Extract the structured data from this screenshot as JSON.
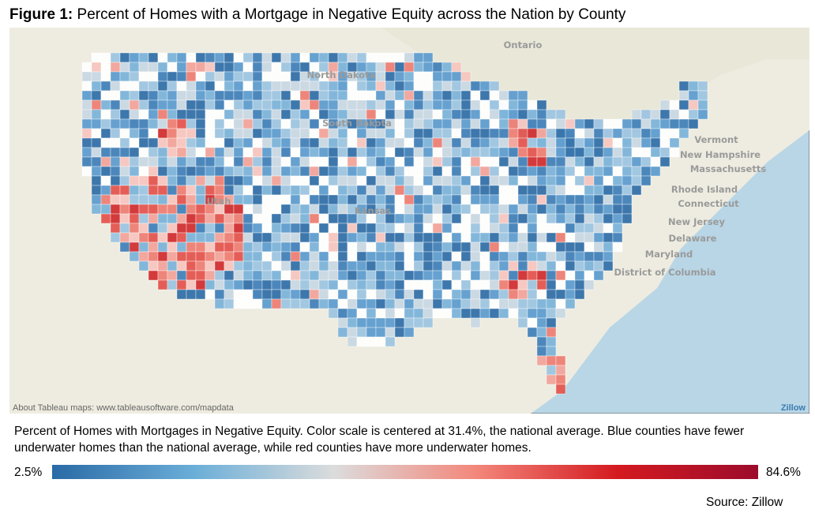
{
  "title": {
    "label": "Figure 1:",
    "text": "Percent of Homes with a Mortgage in Negative Equity across the Nation by County"
  },
  "map": {
    "labels": [
      "Ontario",
      "North Dakota",
      "South Dakota",
      "Kansas",
      "Utah",
      "Vermont",
      "New Hampshire",
      "Massachusetts",
      "Rhode Island",
      "Connecticut",
      "New Jersey",
      "Delaware",
      "Maryland",
      "District of Columbia"
    ],
    "attribution": "About Tableau maps: www.tableausoftware.com/mapdata",
    "logo": "Zillow"
  },
  "caption": "Percent of Homes with Mortgages in Negative Equity. Color scale is centered at 31.4%, the national average. Blue counties have fewer underwater homes than the national average, while red counties have more underwater homes.",
  "legend": {
    "min": "2.5%",
    "max": "84.6%",
    "colors": [
      "#2a6aa6",
      "#6aaed8",
      "#dcdcdc",
      "#f3877b",
      "#d41a20",
      "#9c0c2c"
    ]
  },
  "source": "Source: Zillow"
}
